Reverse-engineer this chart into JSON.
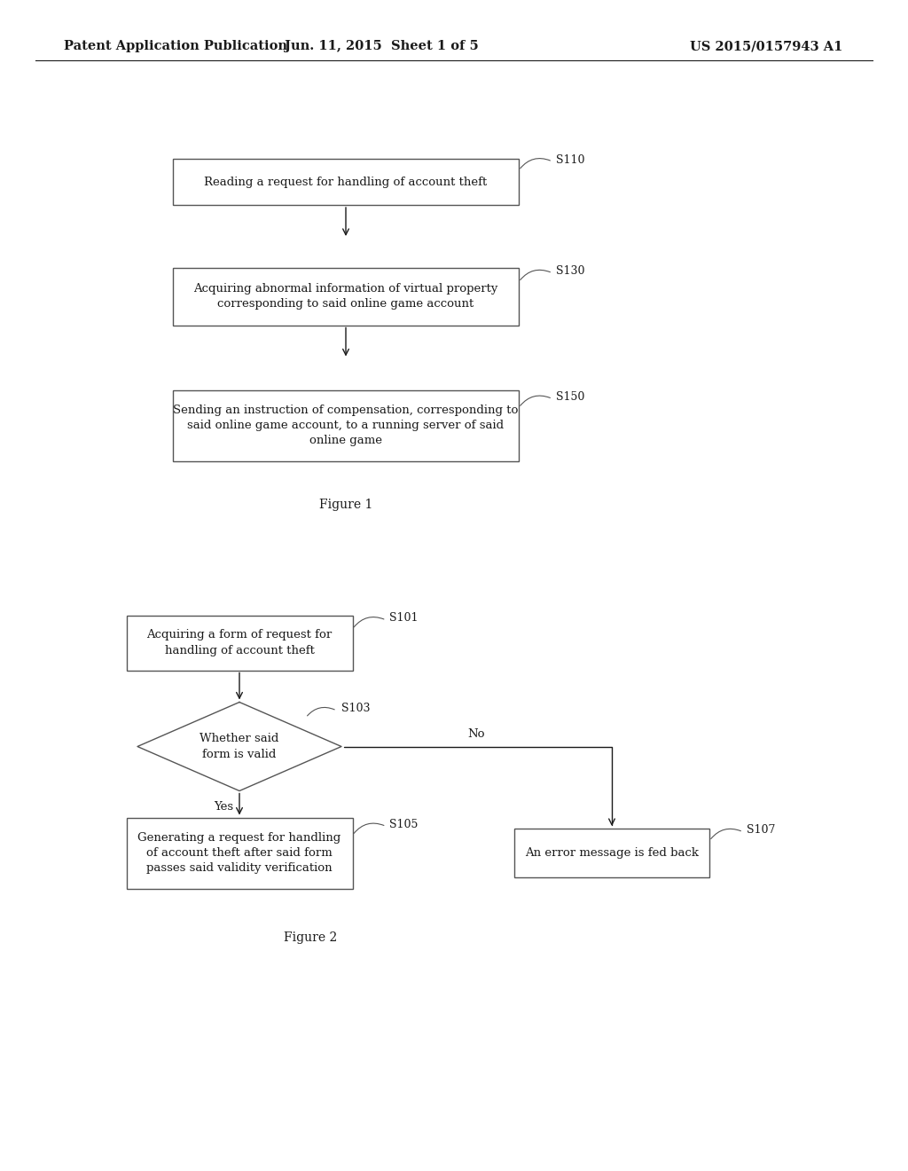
{
  "bg_color": "#ffffff",
  "text_color": "#1a1a1a",
  "header_left": "Patent Application Publication",
  "header_center": "Jun. 11, 2015  Sheet 1 of 5",
  "header_right": "US 2015/0157943 A1",
  "fig1_caption": "Figure 1",
  "fig2_caption": "Figure 2",
  "fig1": {
    "box1_text": "Reading a request for handling of account theft",
    "box1_label": "S110",
    "box2_text": "Acquiring abnormal information of virtual property\ncorresponding to said online game account",
    "box2_label": "S130",
    "box3_text": "Sending an instruction of compensation, corresponding to\nsaid online game account, to a running server of said\nonline game",
    "box3_label": "S150"
  },
  "fig2": {
    "box1_text": "Acquiring a form of request for\nhandling of account theft",
    "box1_label": "S101",
    "diamond_text": "Whether said\nform is valid",
    "diamond_label": "S103",
    "box2_text": "Generating a request for handling\nof account theft after said form\npasses said validity verification",
    "box2_label": "S105",
    "box3_text": "An error message is fed back",
    "box3_label": "S107",
    "yes_label": "Yes",
    "no_label": "No"
  }
}
